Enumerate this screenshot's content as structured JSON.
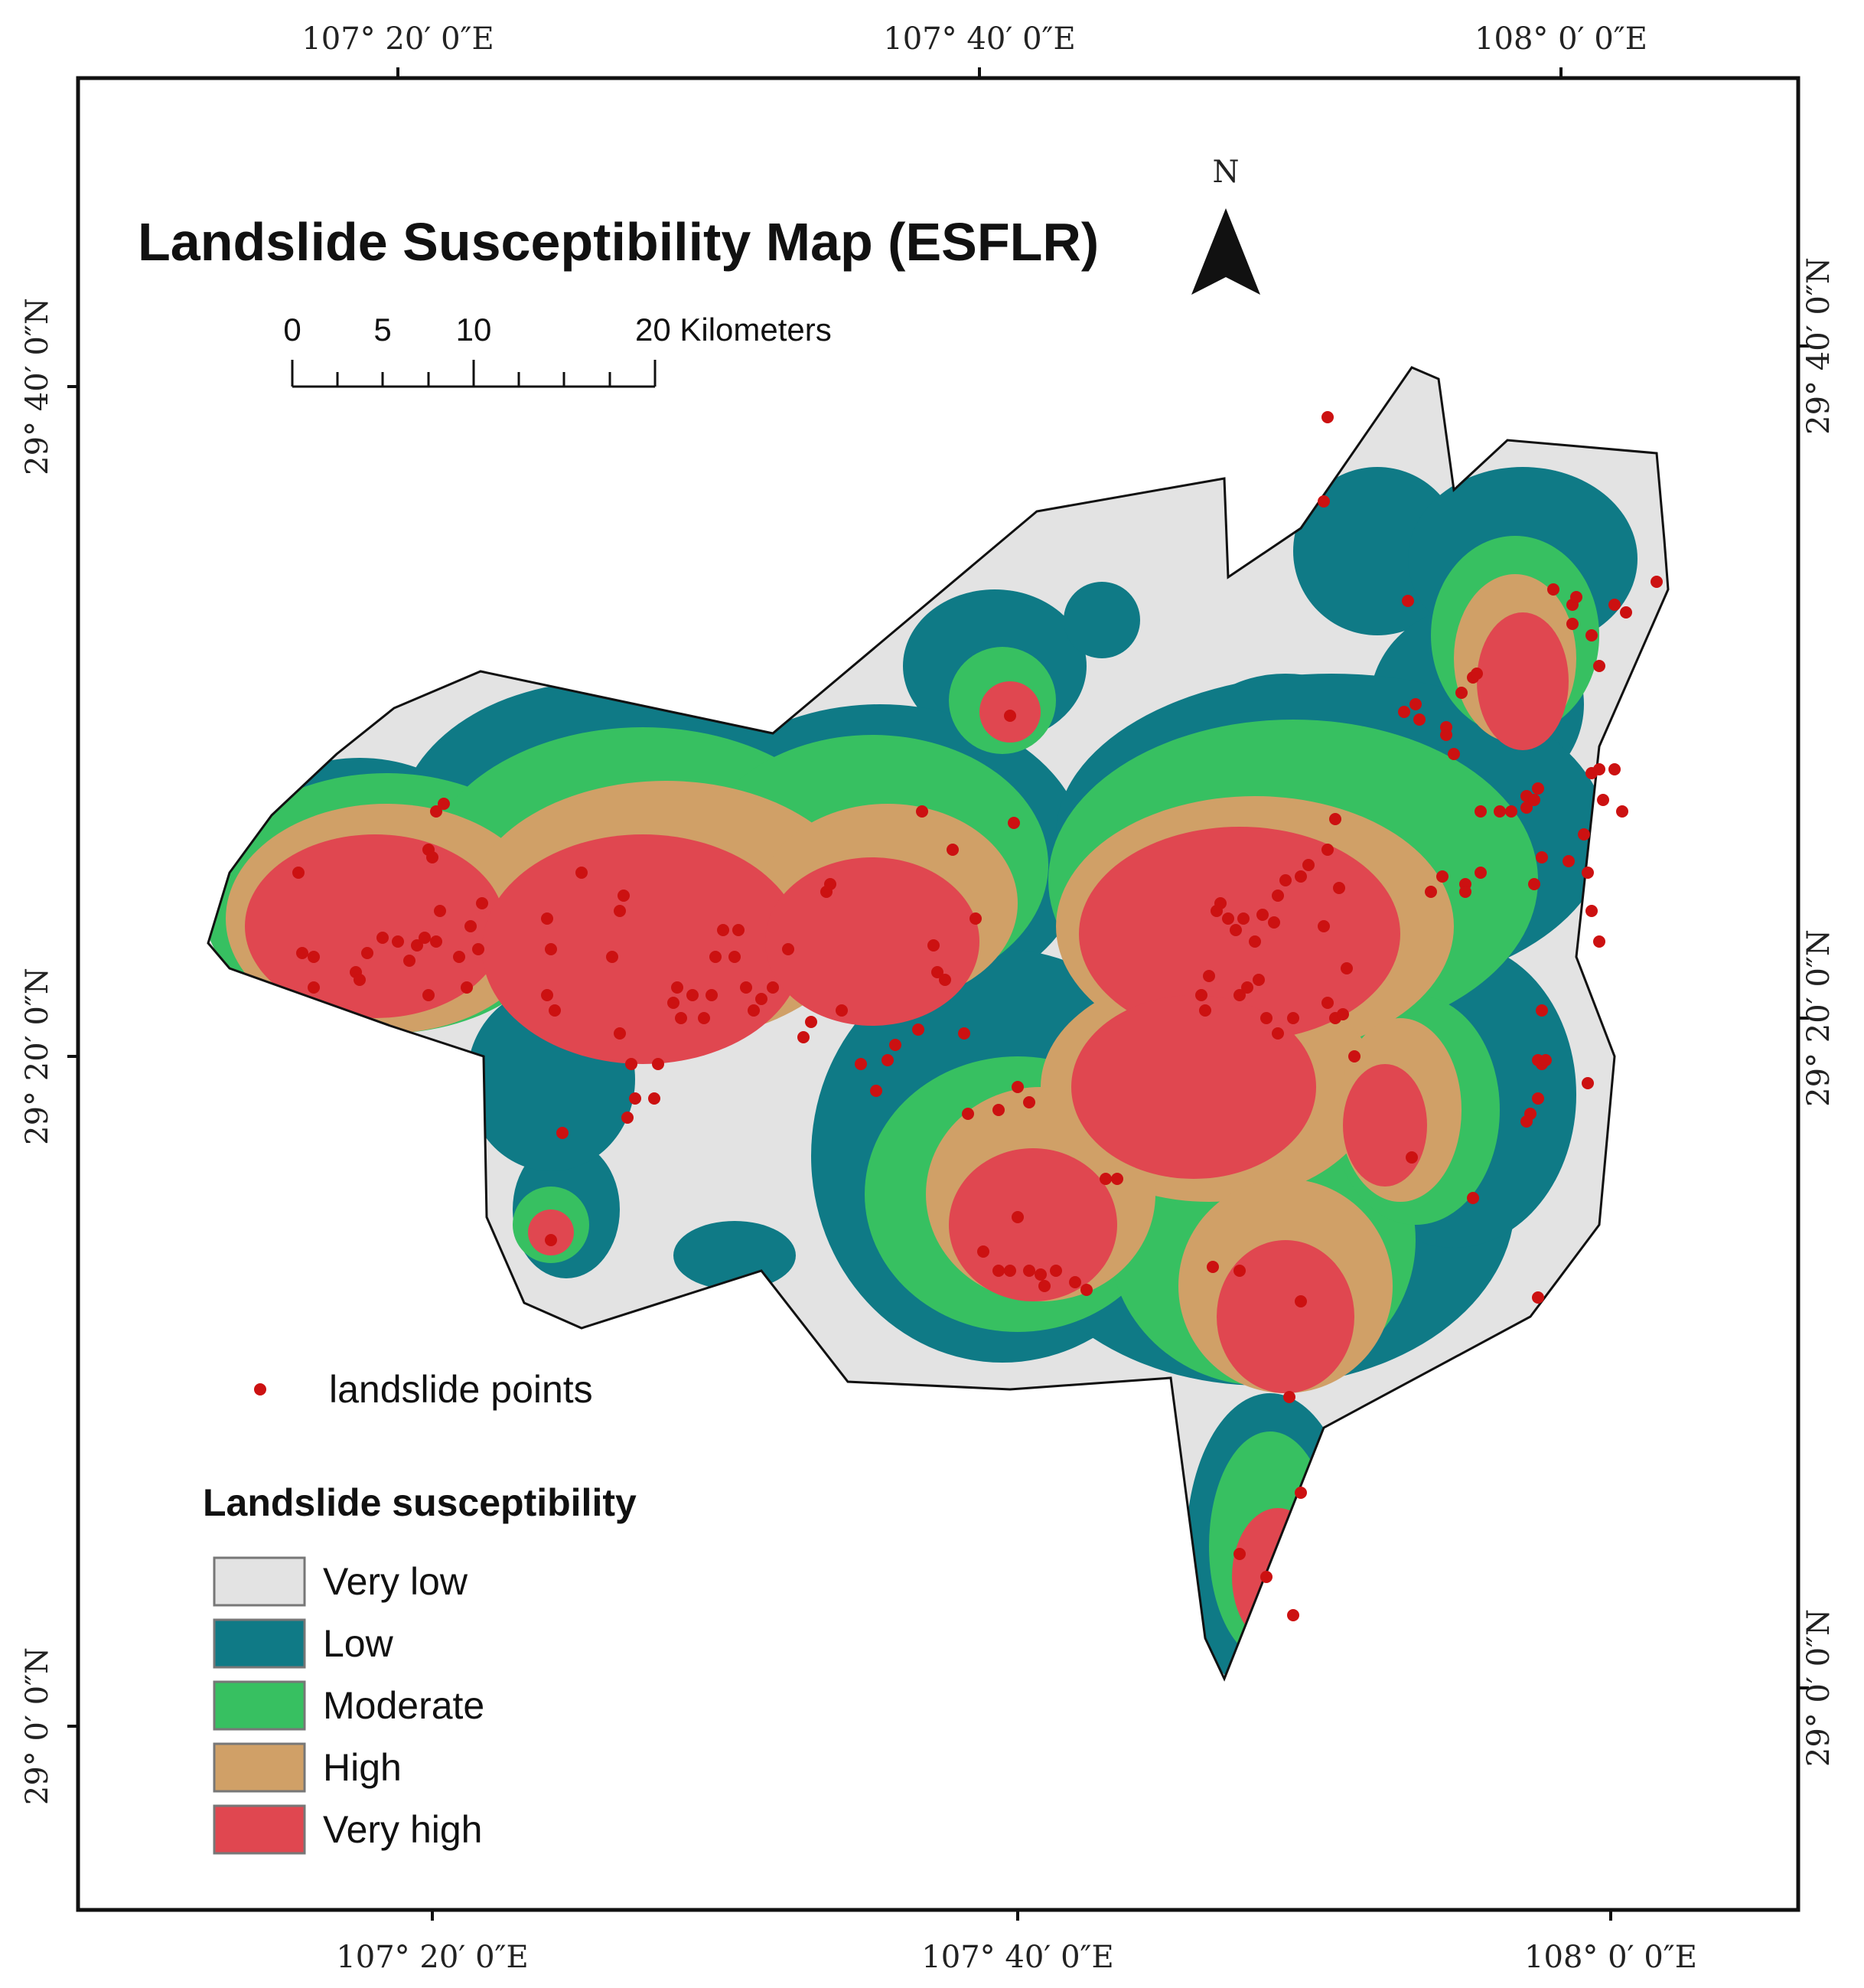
{
  "map": {
    "title": "Landslide Susceptibility Map (ESFLR)",
    "north_arrow": {
      "label": "N",
      "icon": "north-arrow-icon"
    },
    "graticule": {
      "top_labels": [
        "107° 20′ 0″E",
        "107° 40′ 0″E",
        "108° 0′ 0″E"
      ],
      "bottom_labels": [
        "107° 20′ 0″E",
        "107° 40′ 0″E",
        "108° 0′ 0″E"
      ],
      "left_labels": [
        "29° 40′ 0″N",
        "29° 20′ 0″N",
        "29° 0′ 0″N"
      ],
      "right_labels": [
        "29° 40′ 0″N",
        "29° 20′ 0″N",
        "29° 0′ 0″N"
      ]
    },
    "scale_bar": {
      "ticks": [
        "0",
        "5",
        "10",
        "20 Kilometers"
      ]
    },
    "points_legend": {
      "label": "landslide points",
      "color": "#cc1111"
    },
    "legend": {
      "title": "Landslide susceptibility",
      "items": [
        {
          "label": "Very low",
          "color": "#e3e3e3"
        },
        {
          "label": "Low",
          "color": "#0f7a86"
        },
        {
          "label": "Moderate",
          "color": "#37c061"
        },
        {
          "label": "High",
          "color": "#d0a067"
        },
        {
          "label": "Very high",
          "color": "#e04750"
        }
      ]
    }
  }
}
